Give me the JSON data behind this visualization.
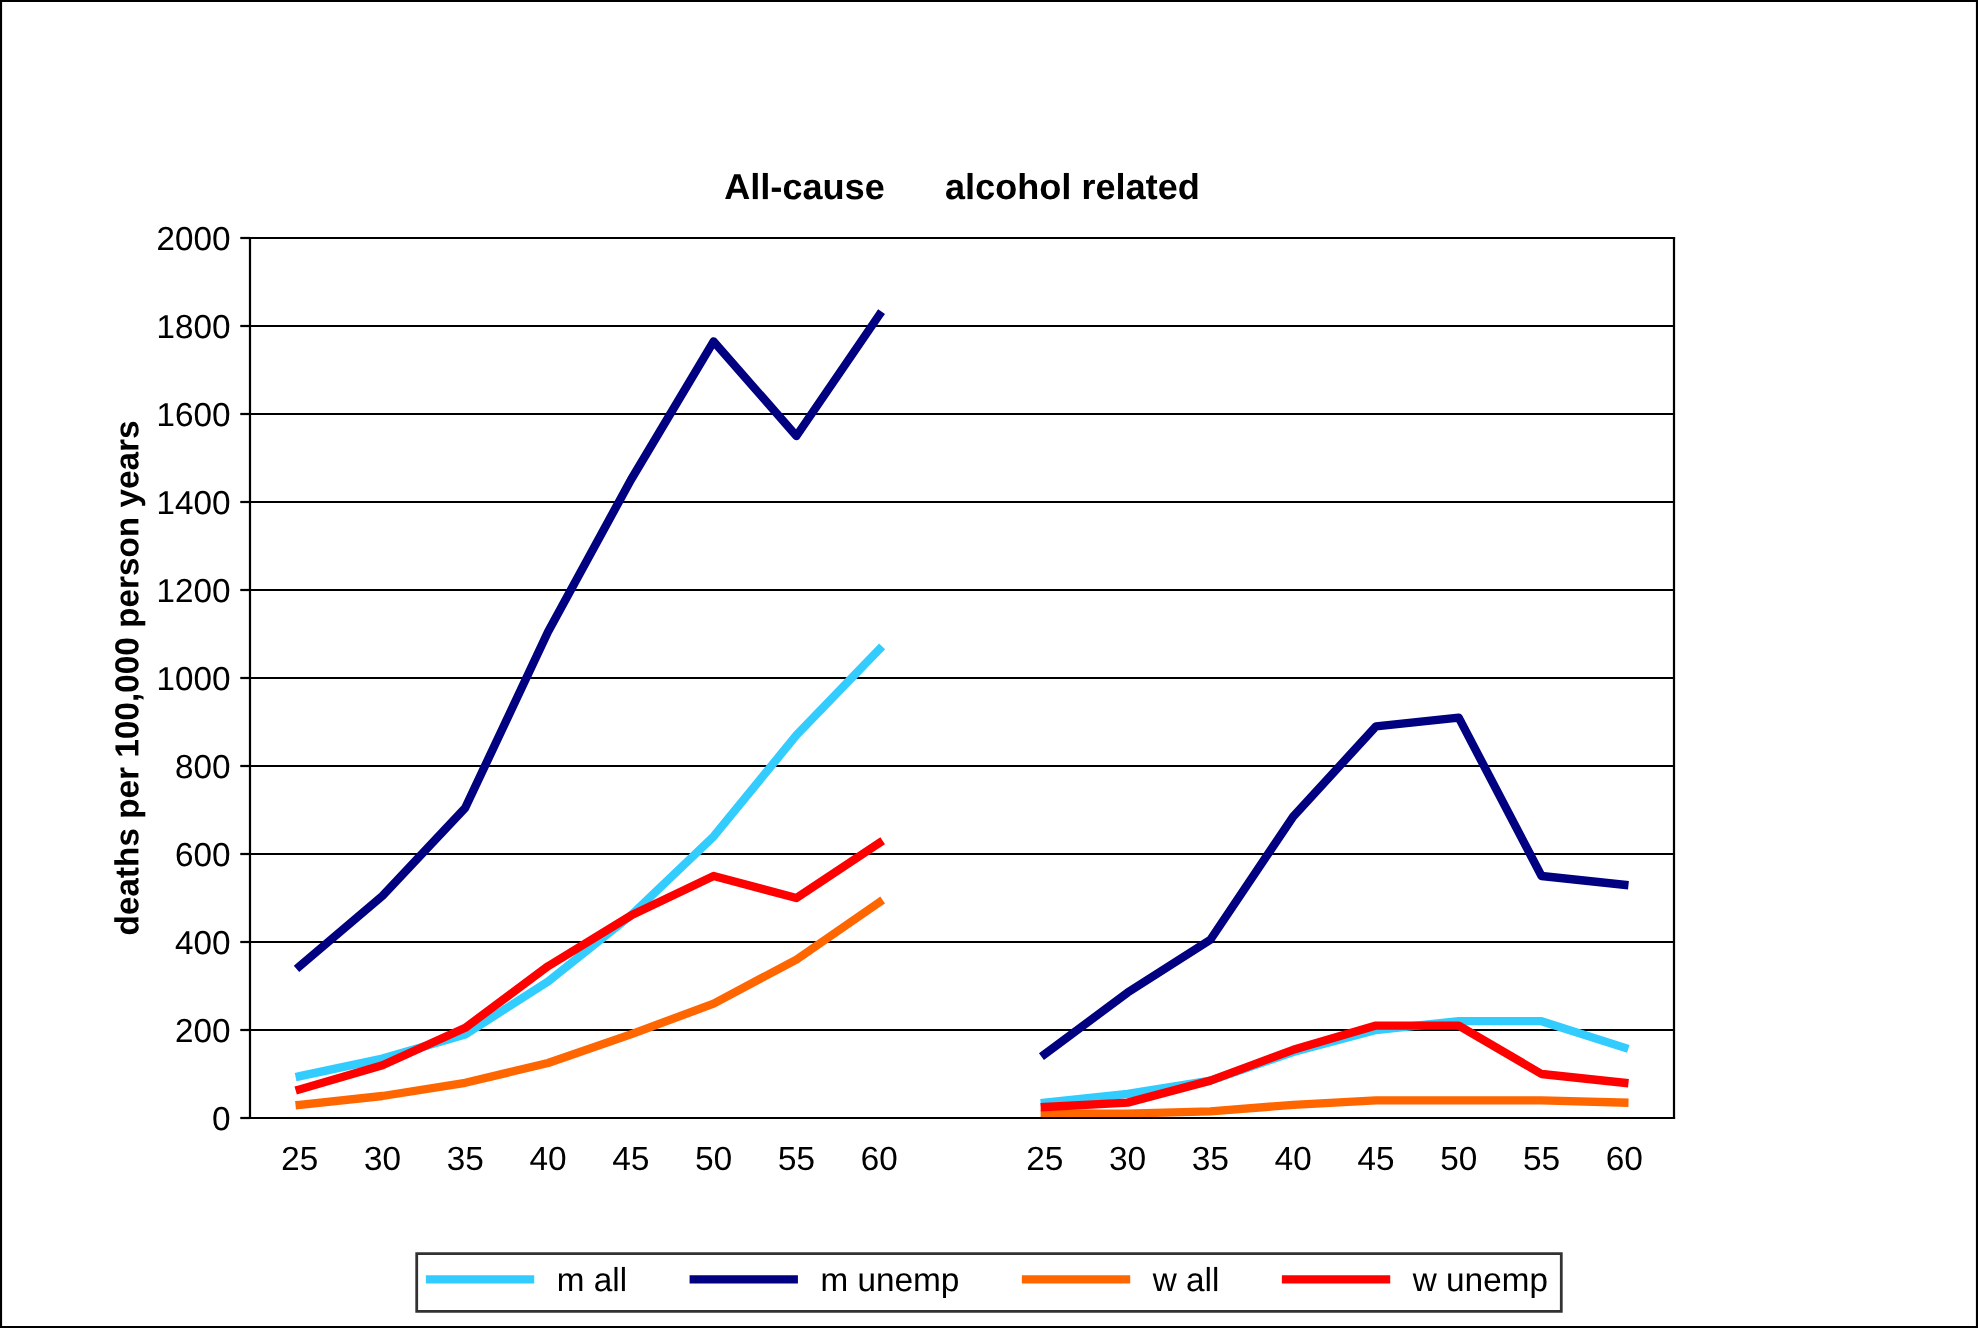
{
  "chart_data": {
    "type": "line",
    "title": "All-cause      alcohol related",
    "ylabel": "deaths per 100,000 person years",
    "categories": [
      "25",
      "30",
      "35",
      "40",
      "45",
      "50",
      "55",
      "60",
      null,
      "25",
      "30",
      "35",
      "40",
      "45",
      "50",
      "55",
      "60"
    ],
    "series": [
      {
        "name": "m all",
        "color": "#33ccff",
        "values": [
          95,
          135,
          190,
          310,
          460,
          640,
          870,
          1065,
          null,
          35,
          55,
          85,
          150,
          200,
          220,
          220,
          160
        ]
      },
      {
        "name": "m unemp",
        "color": "#000080",
        "values": [
          345,
          505,
          705,
          1105,
          1450,
          1765,
          1550,
          1825,
          null,
          145,
          285,
          405,
          685,
          890,
          910,
          550,
          530
        ]
      },
      {
        "name": "w all",
        "color": "#ff6600",
        "values": [
          30,
          50,
          80,
          125,
          190,
          260,
          360,
          490,
          null,
          10,
          10,
          15,
          30,
          40,
          40,
          40,
          35
        ]
      },
      {
        "name": "w unemp",
        "color": "#ff0000",
        "values": [
          65,
          120,
          205,
          345,
          460,
          550,
          500,
          625,
          null,
          25,
          35,
          85,
          155,
          210,
          210,
          100,
          80
        ]
      }
    ],
    "ylim": [
      0,
      2000
    ],
    "yticks": [
      0,
      200,
      400,
      600,
      800,
      1000,
      1200,
      1400,
      1600,
      1800,
      2000
    ],
    "grid": "y",
    "legend": "bottom",
    "marker": "none",
    "line_style": "solid"
  }
}
